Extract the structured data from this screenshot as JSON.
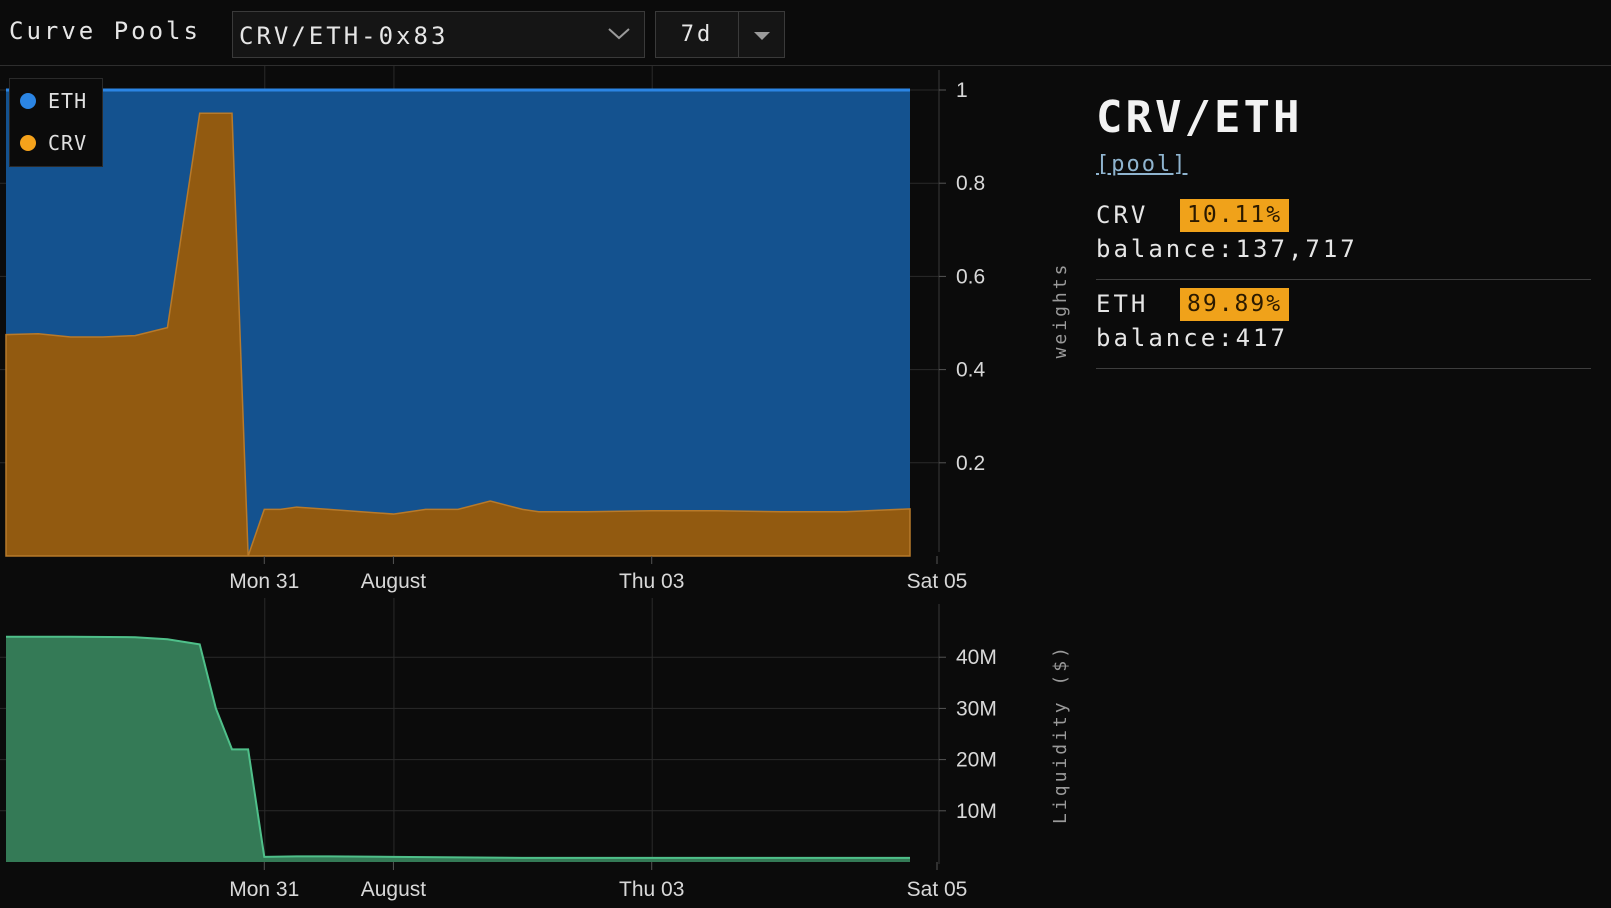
{
  "app": {
    "title": "Curve Pools"
  },
  "toolbar": {
    "pool_selected": "CRV/ETH-0x83",
    "pool_chevron_icon": "chevron-down-icon",
    "range_selected": "7d",
    "range_dropdown_icon": "caret-down-icon"
  },
  "colors": {
    "eth": "#2b85e4",
    "crv": "#f5a21b",
    "eth_area": "#14528f",
    "crv_area": "#925a10",
    "liquidity_area": "#347a56",
    "liquidity_line": "#4fc08a",
    "badge": "#f0a21a"
  },
  "legend": {
    "items": [
      {
        "label": "ETH",
        "color": "#2b85e4"
      },
      {
        "label": "CRV",
        "color": "#f5a21b"
      }
    ]
  },
  "chart_data": [
    {
      "type": "area",
      "stacked": true,
      "ylabel": "weights",
      "ylim": [
        0,
        1
      ],
      "y_ticks": [
        "0.2",
        "0.4",
        "0.6",
        "0.8",
        "1"
      ],
      "x_ticks": [
        "Mon 31",
        "August",
        "Thu 03",
        "Sat 05"
      ],
      "x_start": "2023-07-29T00:00",
      "x_end": "2023-08-05T00:00",
      "legend_position": "top-left",
      "grid": true,
      "x": [
        "07-29 00:00",
        "07-29 06:00",
        "07-29 12:00",
        "07-29 18:00",
        "07-30 00:00",
        "07-30 06:00",
        "07-30 12:00",
        "07-30 18:00",
        "07-30 21:00",
        "07-31 00:00",
        "07-31 03:00",
        "07-31 06:00",
        "07-31 12:00",
        "07-31 18:00",
        "08-01 00:00",
        "08-01 06:00",
        "08-01 12:00",
        "08-01 18:00",
        "08-02 00:00",
        "08-02 03:00",
        "08-02 06:00",
        "08-02 12:00",
        "08-03 00:00",
        "08-03 12:00",
        "08-04 00:00",
        "08-04 12:00",
        "08-05 00:00"
      ],
      "series": [
        {
          "name": "CRV",
          "values": [
            0.475,
            0.477,
            0.47,
            0.47,
            0.473,
            0.49,
            0.95,
            0.95,
            0.0,
            0.1,
            0.1,
            0.105,
            0.1,
            0.095,
            0.09,
            0.1,
            0.1,
            0.118,
            0.1,
            0.095,
            0.095,
            0.095,
            0.097,
            0.097,
            0.095,
            0.095,
            0.1011
          ]
        },
        {
          "name": "ETH",
          "values": [
            0.525,
            0.523,
            0.53,
            0.53,
            0.527,
            0.51,
            0.05,
            0.05,
            1.0,
            0.9,
            0.9,
            0.895,
            0.9,
            0.905,
            0.91,
            0.9,
            0.9,
            0.882,
            0.9,
            0.905,
            0.905,
            0.905,
            0.903,
            0.903,
            0.905,
            0.905,
            0.8989
          ]
        }
      ]
    },
    {
      "type": "area",
      "ylabel": "Liquidity ($)",
      "y_ticks": [
        "10M",
        "20M",
        "30M",
        "40M"
      ],
      "ylim": [
        0,
        50000000
      ],
      "x_ticks": [
        "Mon 31",
        "August",
        "Thu 03",
        "Sat 05"
      ],
      "grid": true,
      "x": [
        "07-29 00:00",
        "07-29 12:00",
        "07-30 00:00",
        "07-30 06:00",
        "07-30 12:00",
        "07-30 15:00",
        "07-30 18:00",
        "07-30 21:00",
        "07-31 00:00",
        "07-31 06:00",
        "07-31 12:00",
        "08-01 00:00",
        "08-02 00:00",
        "08-03 00:00",
        "08-04 00:00",
        "08-05 00:00"
      ],
      "series": [
        {
          "name": "Liquidity",
          "values": [
            44000000,
            44000000,
            43900000,
            43500000,
            42500000,
            30000000,
            22000000,
            22000000,
            1000000,
            1100000,
            1100000,
            1000000,
            800000,
            800000,
            800000,
            800000
          ]
        }
      ]
    }
  ],
  "info": {
    "pair": "CRV/ETH",
    "link": "[pool]",
    "tokens": [
      {
        "symbol": "CRV",
        "percent": "10.11%",
        "balance": "balance:137,717"
      },
      {
        "symbol": "ETH",
        "percent": "89.89%",
        "balance": "balance:417"
      }
    ]
  }
}
